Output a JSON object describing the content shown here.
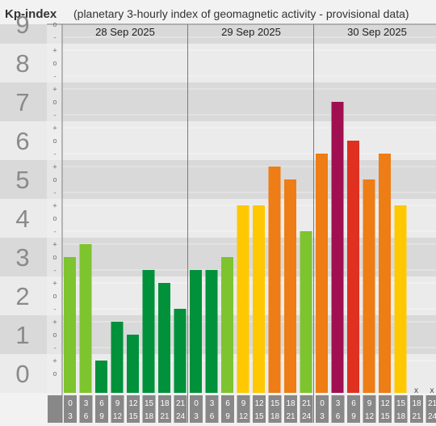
{
  "header": {
    "title": "Kp-index",
    "subtitle": "(planetary 3-hourly index of geomagnetic activity - provisional data)"
  },
  "chart_data": {
    "type": "bar",
    "title": "Kp-index",
    "subtitle": "(planetary 3-hourly index of geomagnetic activity - provisional data)",
    "ylim": [
      0,
      9
    ],
    "y_ticks": [
      "0",
      "1",
      "2",
      "3",
      "4",
      "5",
      "6",
      "7",
      "8",
      "9"
    ],
    "minor_tick_marks": [
      "+",
      "o",
      "-"
    ],
    "days": [
      "28 Sep 2025",
      "29 Sep 2025",
      "30 Sep 2025"
    ],
    "interval_starts": [
      "0",
      "3",
      "6",
      "9",
      "12",
      "15",
      "18",
      "21"
    ],
    "interval_ends": [
      "3",
      "6",
      "9",
      "12",
      "15",
      "18",
      "21",
      "24"
    ],
    "series": [
      {
        "day": "28 Sep 2025",
        "values": [
          3.0,
          3.333,
          0.333,
          1.333,
          1.0,
          2.667,
          2.333,
          1.667
        ]
      },
      {
        "day": "29 Sep 2025",
        "values": [
          2.667,
          2.667,
          3.0,
          4.333,
          4.333,
          5.333,
          5.0,
          3.667
        ]
      },
      {
        "day": "30 Sep 2025",
        "values": [
          5.667,
          7.0,
          6.0,
          5.0,
          5.667,
          4.333,
          null,
          null
        ]
      }
    ],
    "missing_marker": "x",
    "colors": {
      "kp_0_3": "#00913a",
      "kp_3_4": "#7dc42f",
      "kp_4_5": "#ffc800",
      "kp_5_6": "#ed7d14",
      "kp_6_7": "#e03020",
      "kp_7_9": "#a01050",
      "band_dark": "#d9d9d9",
      "band_light": "#ebebeb",
      "hour_box": "#888888"
    },
    "grid": true
  }
}
